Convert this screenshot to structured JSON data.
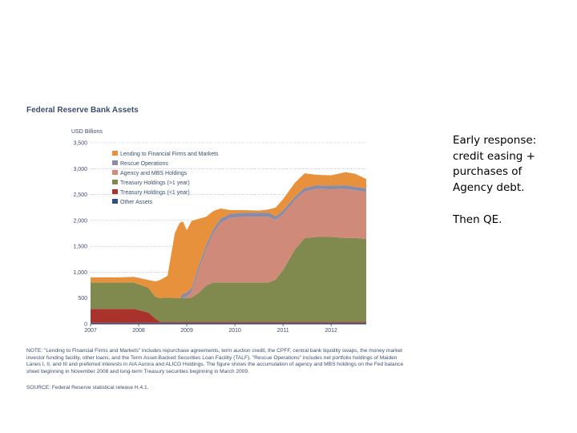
{
  "slide": {
    "bullet_1": "Early response: credit easing + purchases of Agency debt.",
    "bullet_2": "Then QE."
  },
  "chart_data": {
    "type": "area",
    "title": "Federal Reserve Bank Assets",
    "ylabel": "USD Billions",
    "xlabel": "",
    "ylim": [
      0,
      3500
    ],
    "xlim": [
      2007.0,
      2012.73
    ],
    "yticks": [
      0,
      500,
      "1,000",
      "1,500",
      "2,000",
      "2,500",
      "3,000",
      "3,500"
    ],
    "xticks": [
      "2007",
      "2008",
      "2009",
      "2010",
      "2011",
      "2012"
    ],
    "grid": true,
    "legend_position": "top-left",
    "stacked": true,
    "x": [
      2007.0,
      2007.6,
      2007.9,
      2008.2,
      2008.35,
      2008.45,
      2008.6,
      2008.75,
      2008.85,
      2008.92,
      2009.0,
      2009.1,
      2009.25,
      2009.4,
      2009.55,
      2009.7,
      2009.9,
      2010.2,
      2010.5,
      2010.7,
      2010.85,
      2011.0,
      2011.25,
      2011.45,
      2011.7,
      2012.0,
      2012.3,
      2012.5,
      2012.73
    ],
    "series": [
      {
        "name": "Other Assets",
        "color": "#2e4f86",
        "values": [
          20,
          20,
          20,
          20,
          20,
          20,
          20,
          20,
          20,
          20,
          20,
          20,
          20,
          20,
          20,
          20,
          20,
          20,
          20,
          20,
          20,
          20,
          20,
          20,
          20,
          20,
          20,
          20,
          20
        ]
      },
      {
        "name": "Treasury Holdings (<1 year)",
        "color": "#a9332c",
        "values": [
          270,
          270,
          270,
          200,
          80,
          20,
          20,
          20,
          20,
          20,
          20,
          20,
          20,
          20,
          20,
          20,
          20,
          20,
          20,
          20,
          20,
          20,
          20,
          20,
          20,
          20,
          20,
          20,
          20
        ]
      },
      {
        "name": "Treasury Holdings (>1 year)",
        "color": "#808a4f",
        "values": [
          510,
          510,
          510,
          480,
          420,
          460,
          470,
          460,
          460,
          460,
          460,
          470,
          560,
          700,
          760,
          760,
          760,
          760,
          760,
          760,
          820,
          1000,
          1400,
          1620,
          1640,
          1640,
          1620,
          1620,
          1600
        ]
      },
      {
        "name": "Agency and MBS Holdings",
        "color": "#cf8a79",
        "values": [
          0,
          0,
          0,
          0,
          0,
          0,
          0,
          0,
          0,
          0,
          30,
          100,
          450,
          700,
          950,
          1150,
          1250,
          1270,
          1270,
          1270,
          1150,
          1080,
          950,
          900,
          930,
          920,
          950,
          920,
          910
        ]
      },
      {
        "name": "Rescue Operations",
        "color": "#8b8ba6",
        "values": [
          0,
          0,
          0,
          0,
          0,
          0,
          0,
          0,
          0,
          80,
          80,
          80,
          80,
          80,
          80,
          80,
          80,
          80,
          80,
          80,
          70,
          70,
          70,
          70,
          70,
          70,
          70,
          70,
          70
        ]
      },
      {
        "name": "Lending to Financial Firms and Markets",
        "color": "#e8913c",
        "values": [
          100,
          100,
          110,
          150,
          300,
          350,
          420,
          1250,
          1450,
          1400,
          1200,
          1300,
          900,
          550,
          350,
          200,
          70,
          50,
          40,
          60,
          170,
          220,
          270,
          280,
          200,
          200,
          250,
          250,
          180
        ]
      }
    ],
    "note": "NOTE: \"Lending to Financial Firms and Markets\" includes repurchase agreements, term auction credit, the CPFF, central bank liquidity swaps, the money market investor funding facility, other loans, and the Term Asset-Backed Securities Loan Facility (TALF). \"Rescue Operations\" includes net portfolio holdings of Maiden Lanes I, II, and III and preferred interests in AIA Aurora and ALICO Holdings. The figure shows the accumulation of agency and MBS holdings on the Fed balance sheet beginning in November 2008 and long-term Treasury securities beginning in March 2009.",
    "source": "SOURCE: Federal Reserve statistical release H.4.1."
  }
}
